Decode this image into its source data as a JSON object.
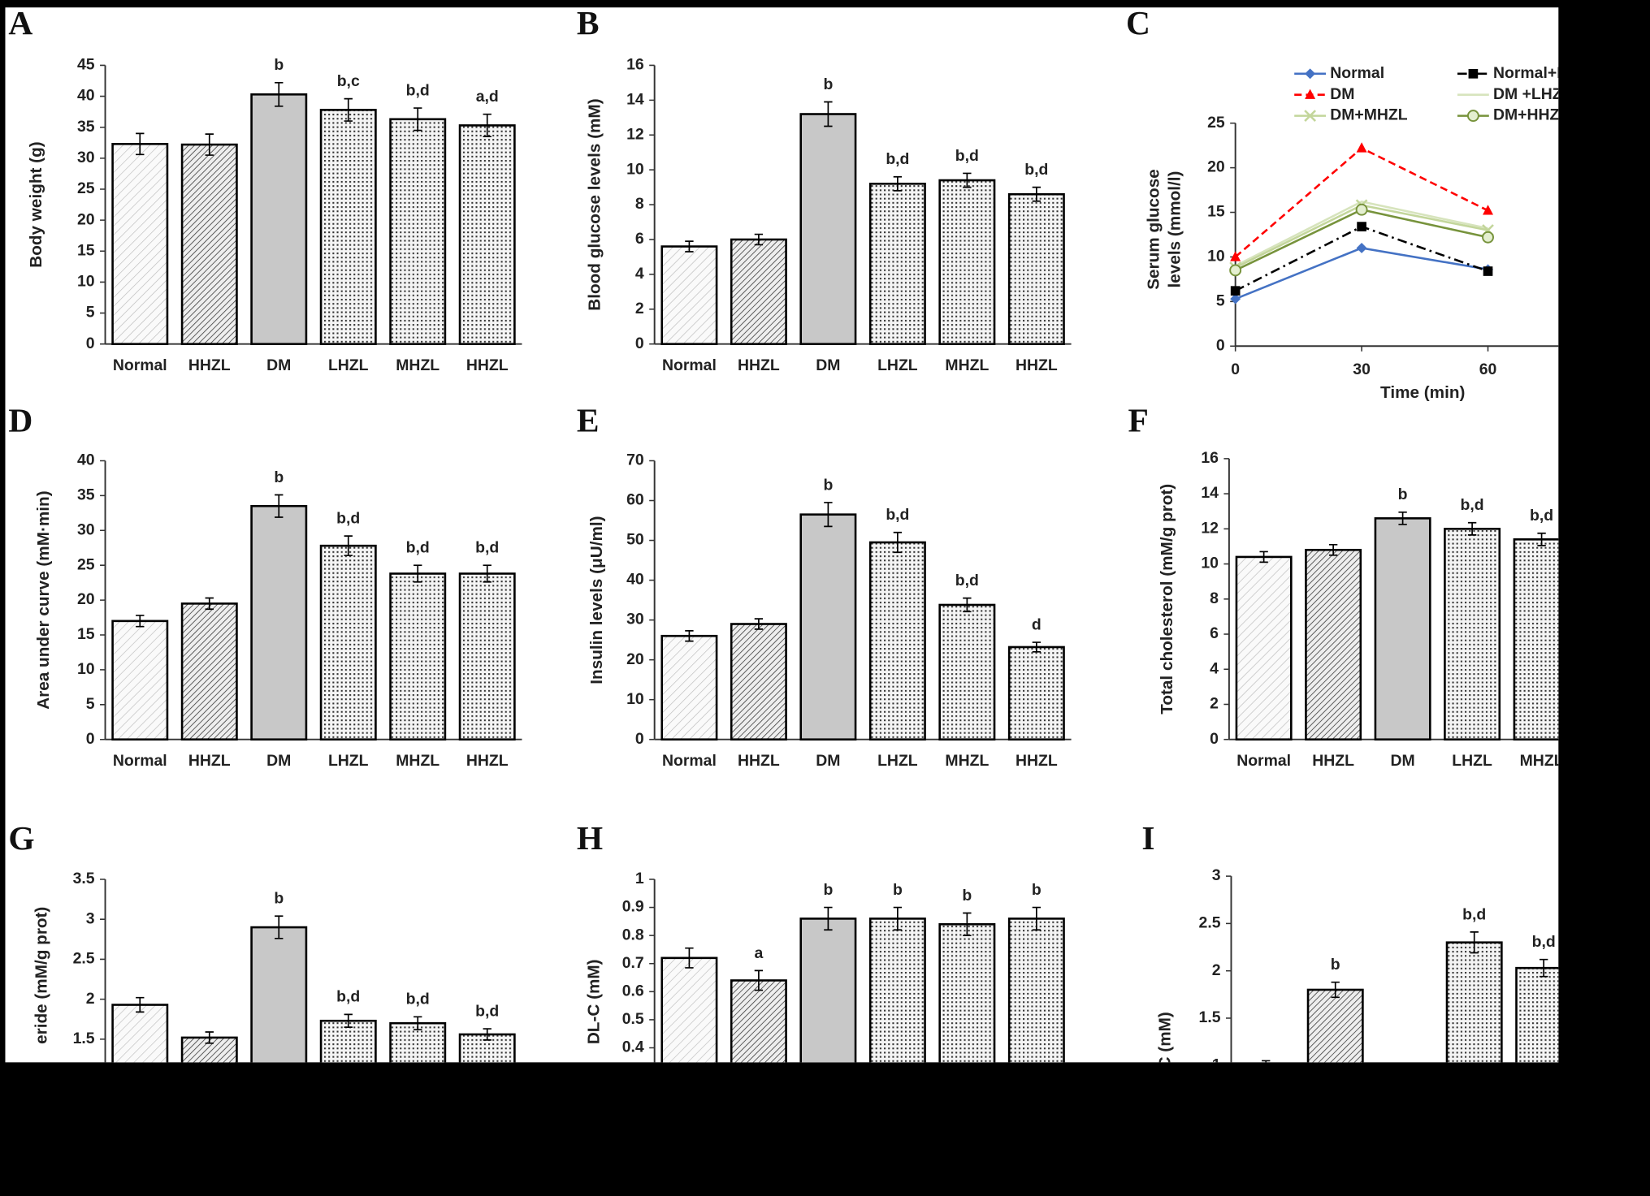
{
  "chart_data": [
    {
      "type": "bar",
      "label": "A",
      "ylabel": "Body weight (g)",
      "categories": [
        "Normal",
        "HHZL",
        "DM",
        "LHZL",
        "MHZL",
        "HHZL"
      ],
      "values": [
        32.3,
        32.2,
        40.3,
        37.8,
        36.3,
        35.3
      ],
      "errors": [
        1.7,
        1.7,
        1.9,
        1.8,
        1.8,
        1.8
      ],
      "annotations": [
        null,
        null,
        "b",
        "b,c",
        "b,d",
        "a,d"
      ],
      "ylim": [
        0,
        45
      ],
      "yticks": [
        0,
        5,
        10,
        15,
        20,
        25,
        30,
        35,
        40,
        45
      ]
    },
    {
      "type": "bar",
      "label": "B",
      "ylabel": "Blood glucose levels (mM)",
      "categories": [
        "Normal",
        "HHZL",
        "DM",
        "LHZL",
        "MHZL",
        "HHZL"
      ],
      "values": [
        5.6,
        6.0,
        13.2,
        9.2,
        9.4,
        8.6
      ],
      "errors": [
        0.3,
        0.3,
        0.7,
        0.4,
        0.4,
        0.4
      ],
      "annotations": [
        null,
        null,
        "b",
        "b,d",
        "b,d",
        "b,d"
      ],
      "ylim": [
        0,
        16
      ],
      "yticks": [
        0,
        2,
        4,
        6,
        8,
        10,
        12,
        14,
        16
      ]
    },
    {
      "type": "line",
      "label": "C",
      "ylabel": [
        "Serum glucose",
        "levels (mmol/l)"
      ],
      "xlabel": "Time (min)",
      "x": [
        0,
        30,
        60
      ],
      "xlim": [
        0,
        120
      ],
      "xticks": [
        0,
        30,
        60
      ],
      "ylim": [
        0,
        25
      ],
      "yticks": [
        0,
        5,
        10,
        15,
        20,
        25
      ],
      "series": [
        {
          "name": "Normal",
          "color": "#4472c4",
          "marker": "diamond",
          "line_style": "solid",
          "values": [
            5.3,
            11.0,
            8.6
          ]
        },
        {
          "name": "Normal+H",
          "color": "#000000",
          "marker": "square",
          "line_style": "dashdot",
          "values": [
            6.2,
            13.4,
            8.4
          ]
        },
        {
          "name": "DM",
          "color": "#ff0000",
          "marker": "triangle",
          "line_style": "dashed",
          "values": [
            10.0,
            22.2,
            15.2
          ]
        },
        {
          "name": "DM +LHZ",
          "color": "#d7e4bd",
          "marker": "none",
          "line_style": "solid",
          "values": [
            9.0,
            16.2,
            13.2
          ]
        },
        {
          "name": "DM+MHZL",
          "color": "#c3d69b",
          "marker": "x",
          "line_style": "solid",
          "values": [
            8.8,
            15.8,
            13.0
          ]
        },
        {
          "name": "DM+HHZ",
          "color": "#77933c",
          "marker": "circle",
          "line_style": "solid",
          "values": [
            8.5,
            15.3,
            12.2
          ]
        }
      ]
    },
    {
      "type": "bar",
      "label": "D",
      "ylabel": "Area under curve (mM·min)",
      "categories": [
        "Normal",
        "HHZL",
        "DM",
        "LHZL",
        "MHZL",
        "HHZL"
      ],
      "values": [
        17.0,
        19.5,
        33.5,
        27.8,
        23.8,
        23.8
      ],
      "errors": [
        0.8,
        0.8,
        1.6,
        1.4,
        1.2,
        1.2
      ],
      "annotations": [
        null,
        null,
        "b",
        "b,d",
        "b,d",
        "b,d"
      ],
      "ylim": [
        0,
        40
      ],
      "yticks": [
        0,
        5,
        10,
        15,
        20,
        25,
        30,
        35,
        40
      ]
    },
    {
      "type": "bar",
      "label": "E",
      "ylabel": "Insulin levels (μU/ml)",
      "categories": [
        "Normal",
        "HHZL",
        "DM",
        "LHZL",
        "MHZL",
        "HHZL"
      ],
      "values": [
        26.0,
        29.0,
        56.5,
        49.5,
        33.8,
        23.2
      ],
      "errors": [
        1.3,
        1.3,
        3.0,
        2.5,
        1.7,
        1.2
      ],
      "annotations": [
        null,
        null,
        "b",
        "b,d",
        "b,d",
        "d"
      ],
      "ylim": [
        0,
        70
      ],
      "yticks": [
        0,
        10,
        20,
        30,
        40,
        50,
        60,
        70
      ]
    },
    {
      "type": "bar",
      "label": "F",
      "ylabel": "Total cholesterol (mM/g prot)",
      "categories": [
        "Normal",
        "HHZL",
        "DM",
        "LHZL",
        "MHZL"
      ],
      "values": [
        10.4,
        10.8,
        12.6,
        12.0,
        11.4
      ],
      "errors": [
        0.3,
        0.3,
        0.35,
        0.35,
        0.35
      ],
      "annotations": [
        null,
        null,
        "b",
        "b,d",
        "b,d"
      ],
      "ylim": [
        0,
        16
      ],
      "yticks": [
        0,
        2,
        4,
        6,
        8,
        10,
        12,
        14,
        16
      ]
    },
    {
      "type": "bar",
      "label": "G",
      "ylabel": "eride (mM/g prot)",
      "categories": [
        null,
        null,
        null,
        null,
        null,
        null
      ],
      "values": [
        1.93,
        1.52,
        2.9,
        1.73,
        1.7,
        1.56
      ],
      "errors": [
        0.09,
        0.07,
        0.14,
        0.08,
        0.08,
        0.07
      ],
      "annotations": [
        null,
        null,
        "b",
        "b,d",
        "b,d",
        "b,d"
      ],
      "ylim": [
        0,
        3.5
      ],
      "yticks": [
        1.5,
        2,
        2.5,
        3,
        3.5
      ]
    },
    {
      "type": "bar",
      "label": "H",
      "ylabel": "DL-C (mM)",
      "categories": [
        null,
        null,
        null,
        null,
        null,
        null
      ],
      "values": [
        0.72,
        0.64,
        0.86,
        0.86,
        0.84,
        0.86
      ],
      "errors": [
        0.035,
        0.035,
        0.04,
        0.04,
        0.04,
        0.04
      ],
      "annotations": [
        null,
        "a",
        "b",
        "b",
        "b",
        "b"
      ],
      "ylim": [
        0,
        1
      ],
      "yticks": [
        0.4,
        0.5,
        0.6,
        0.7,
        0.8,
        0.9,
        1
      ]
    },
    {
      "type": "bar",
      "label": "I",
      "ylabel": "DL-C (mM)",
      "categories": [
        null,
        null,
        null,
        null,
        null
      ],
      "values": [
        1.0,
        1.8,
        null,
        2.3,
        2.03
      ],
      "errors": [
        0.05,
        0.08,
        null,
        0.11,
        0.09
      ],
      "annotations": [
        null,
        "b",
        null,
        "b,d",
        "b,d"
      ],
      "ylim": [
        0,
        3
      ],
      "yticks": [
        1,
        1.5,
        2,
        2.5,
        3
      ]
    }
  ]
}
